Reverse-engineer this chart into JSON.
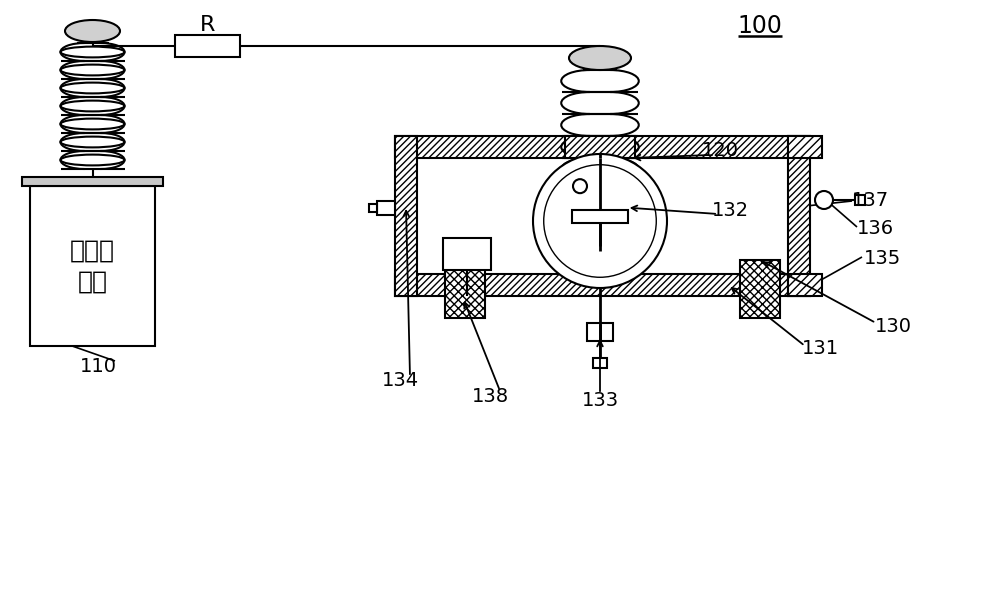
{
  "bg": "#ffffff",
  "lc": "#000000",
  "label_100": "100",
  "label_R": "R",
  "label_110": "110",
  "label_120": "120",
  "label_130": "130",
  "label_131": "131",
  "label_132": "132",
  "label_133": "133",
  "label_134": "134",
  "label_135": "135",
  "label_136": "136",
  "label_137": "137",
  "label_138": "138",
  "label_transformer": "试验变\n压器",
  "fs": 14,
  "fs_large": 17,
  "lw": 1.5
}
